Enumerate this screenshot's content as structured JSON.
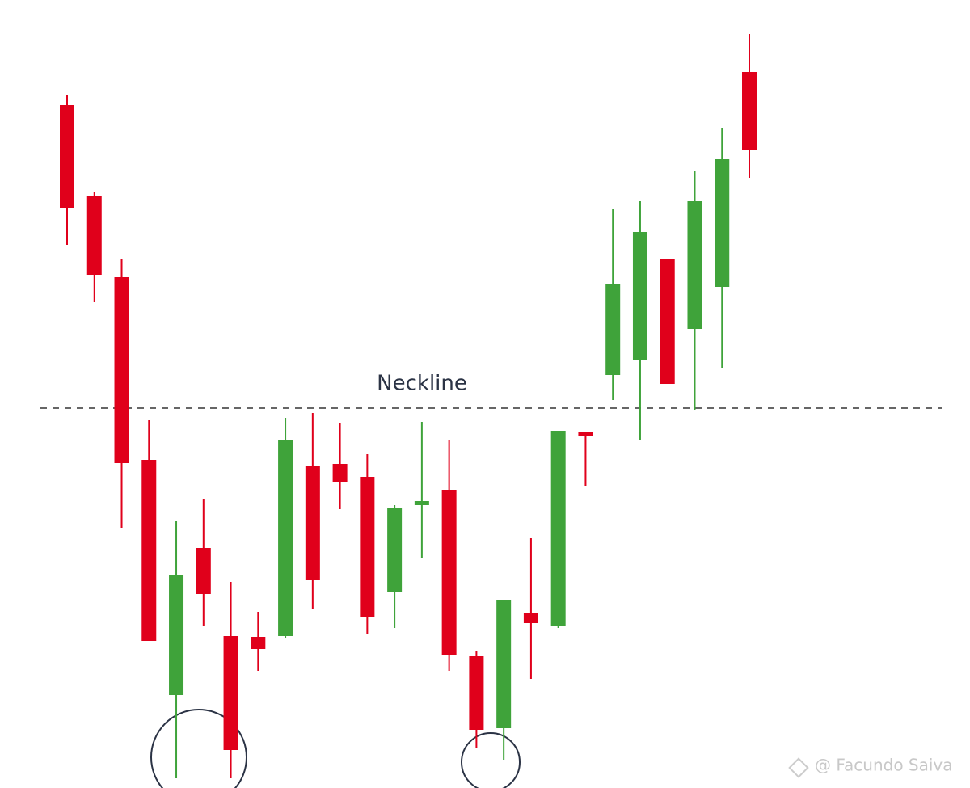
{
  "chart_data": {
    "type": "candlestick",
    "open": [
      845,
      732,
      632,
      406,
      115,
      297,
      188,
      187,
      188,
      398,
      401,
      385,
      242,
      352,
      369,
      163,
      74,
      216,
      200,
      440,
      511,
      530,
      654,
      568,
      620,
      886
    ],
    "high": [
      858,
      737,
      655,
      455,
      330,
      358,
      255,
      218,
      458,
      464,
      451,
      413,
      350,
      453,
      430,
      169,
      233,
      309,
      442,
      440,
      717,
      726,
      655,
      764,
      817,
      933
    ],
    "low": [
      672,
      601,
      322,
      182,
      12,
      200,
      12,
      145,
      185,
      222,
      345,
      190,
      198,
      285,
      145,
      50,
      35,
      135,
      198,
      374,
      480,
      430,
      500,
      468,
      520,
      755
    ],
    "close": [
      718,
      635,
      402,
      182,
      264,
      240,
      47,
      172,
      430,
      257,
      379,
      212,
      347,
      355,
      165,
      72,
      233,
      204,
      442,
      435,
      624,
      688,
      500,
      726,
      778,
      789
    ],
    "up_color": "#3fa33a",
    "down_color": "#e0001b",
    "ylim": [
      0,
      975
    ],
    "neckline": {
      "value": 470,
      "label": "Neckline"
    },
    "watermark": "@ Facundo Saiva"
  }
}
